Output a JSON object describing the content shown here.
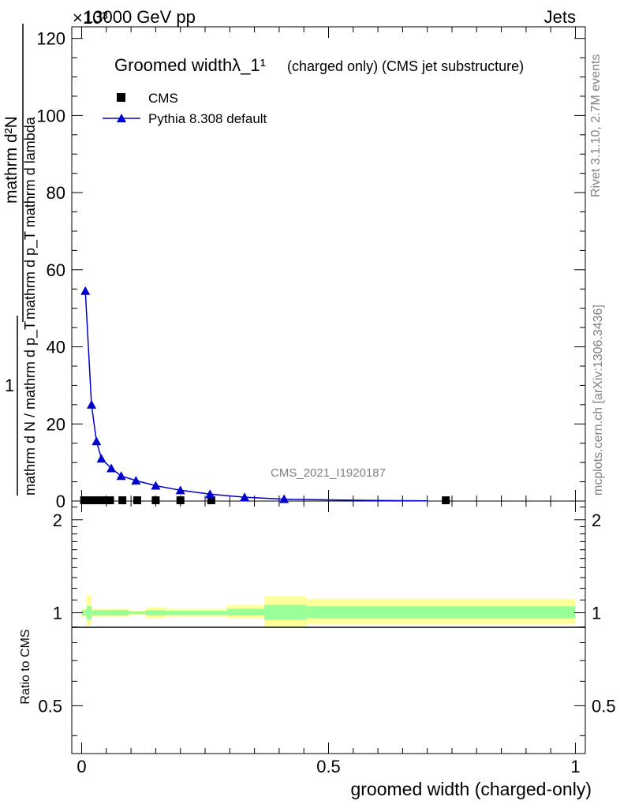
{
  "header": {
    "energy_label": "13000 GeV pp",
    "exponent_label": "×10³",
    "process_label": "Jets"
  },
  "side_labels": {
    "rivet": "Rivet 3.1.10,  2.7M events",
    "mcplots": "mcplots.cern.ch [arXiv:1306.3436]"
  },
  "analysis_label": "CMS_2021_I1920187",
  "upper_ylabel_top": "mathrm d²N",
  "upper_ylabel_top_sub": "mathrm d p_T mathrm d lambda",
  "upper_ylabel_bottom": "1",
  "upper_ylabel_bottom_sub": "mathrm d N / mathrm d p_T",
  "ratio_ylabel": "Ratio to CMS",
  "xlabel": "groomed width (charged-only)",
  "colors": {
    "mc_line": "#0000cc",
    "band_outer": "#ffff99",
    "band_inner": "#99ff99"
  },
  "chart_data": [
    {
      "type": "line",
      "title": "Groomed widthλ_1¹",
      "title_note": "(charged only) (CMS jet substructure)",
      "xlim": [
        -0.02,
        1.02
      ],
      "ylim": [
        0,
        123
      ],
      "y_scale_note": "×10³",
      "y_ticks": [
        0,
        20,
        40,
        60,
        80,
        100,
        120
      ],
      "grid": false,
      "legend_placement": "top-left",
      "series": [
        {
          "name": "CMS",
          "marker": "square",
          "x": [
            0.005,
            0.015,
            0.025,
            0.035,
            0.045,
            0.0575,
            0.0825,
            0.1125,
            0.15,
            0.2,
            0.2625,
            0.7375
          ],
          "y": [
            0.2,
            0.2,
            0.2,
            0.2,
            0.2,
            0.2,
            0.2,
            0.2,
            0.2,
            0.2,
            0.2,
            0.2
          ]
        },
        {
          "name": "Pythia 8.308 default",
          "marker": "triangle",
          "x": [
            0.0075,
            0.02,
            0.03,
            0.04,
            0.06,
            0.08,
            0.11,
            0.15,
            0.2,
            0.26,
            0.33,
            0.41,
            0.5,
            0.6,
            0.7
          ],
          "y": [
            54.5,
            25.0,
            15.5,
            11.0,
            8.5,
            6.5,
            5.3,
            4.0,
            2.8,
            1.8,
            1.0,
            0.5,
            0.3,
            0.15,
            0.05
          ]
        }
      ]
    },
    {
      "type": "area",
      "ylabel": "Ratio to CMS",
      "xlabel": "groomed width (charged-only)",
      "xlim": [
        -0.02,
        1.02
      ],
      "ylim": [
        0.35,
        2.3
      ],
      "y_ticks": [
        0.5,
        1,
        2
      ],
      "x_ticks": [
        0,
        0.5,
        1
      ],
      "bins": [
        {
          "x0": 0.0,
          "x1": 0.01,
          "inner": [
            0.98,
            1.02
          ],
          "outer": [
            0.97,
            1.03
          ]
        },
        {
          "x0": 0.01,
          "x1": 0.02,
          "inner": [
            0.95,
            1.05
          ],
          "outer": [
            0.91,
            1.14
          ]
        },
        {
          "x0": 0.02,
          "x1": 0.05,
          "inner": [
            0.98,
            1.02
          ],
          "outer": [
            0.97,
            1.03
          ]
        },
        {
          "x0": 0.05,
          "x1": 0.095,
          "inner": [
            0.98,
            1.02
          ],
          "outer": [
            0.97,
            1.03
          ]
        },
        {
          "x0": 0.095,
          "x1": 0.13,
          "inner": [
            0.99,
            1.01
          ],
          "outer": [
            0.985,
            1.015
          ]
        },
        {
          "x0": 0.13,
          "x1": 0.17,
          "inner": [
            0.98,
            1.02
          ],
          "outer": [
            0.96,
            1.04
          ]
        },
        {
          "x0": 0.17,
          "x1": 0.23,
          "inner": [
            0.985,
            1.015
          ],
          "outer": [
            0.97,
            1.03
          ]
        },
        {
          "x0": 0.23,
          "x1": 0.295,
          "inner": [
            0.985,
            1.015
          ],
          "outer": [
            0.97,
            1.03
          ]
        },
        {
          "x0": 0.295,
          "x1": 0.37,
          "inner": [
            0.98,
            1.03
          ],
          "outer": [
            0.96,
            1.06
          ]
        },
        {
          "x0": 0.37,
          "x1": 0.455,
          "inner": [
            0.95,
            1.06
          ],
          "outer": [
            0.9,
            1.13
          ]
        },
        {
          "x0": 0.455,
          "x1": 1.0,
          "inner": [
            0.96,
            1.05
          ],
          "outer": [
            0.92,
            1.11
          ]
        }
      ]
    }
  ]
}
